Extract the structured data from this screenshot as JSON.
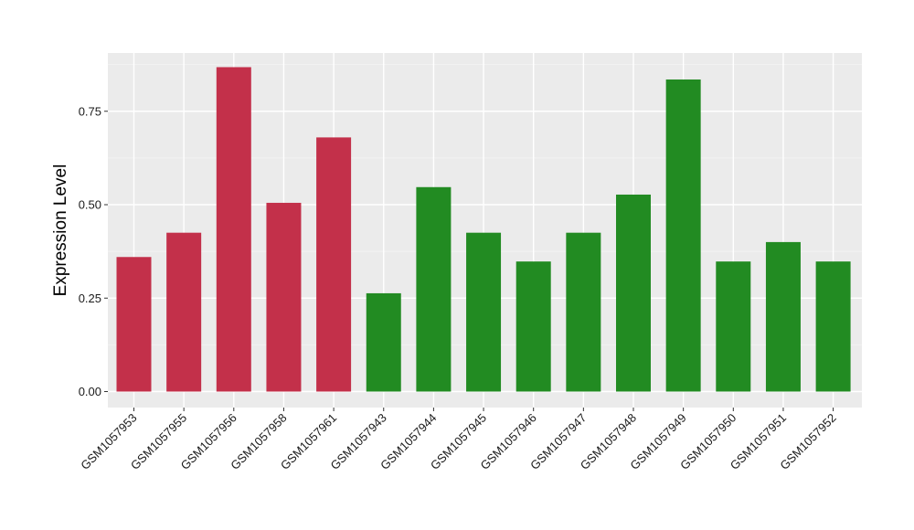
{
  "chart_data": {
    "type": "bar",
    "title": "",
    "xlabel": "",
    "ylabel": "Expression Level",
    "ylim": [
      0,
      0.91
    ],
    "yticks": [
      0.0,
      0.25,
      0.5,
      0.75
    ],
    "ytick_labels": [
      "0.00",
      "0.25",
      "0.50",
      "0.75"
    ],
    "grid": true,
    "legend": "none",
    "categories": [
      "GSM1057953",
      "GSM1057955",
      "GSM1057956",
      "GSM1057958",
      "GSM1057961",
      "GSM1057943",
      "GSM1057944",
      "GSM1057945",
      "GSM1057946",
      "GSM1057947",
      "GSM1057948",
      "GSM1057949",
      "GSM1057950",
      "GSM1057951",
      "GSM1057952"
    ],
    "values": [
      0.36,
      0.425,
      0.868,
      0.505,
      0.68,
      0.263,
      0.547,
      0.425,
      0.348,
      0.425,
      0.527,
      0.835,
      0.348,
      0.4,
      0.348
    ],
    "groups": [
      "red",
      "red",
      "red",
      "red",
      "red",
      "green",
      "green",
      "green",
      "green",
      "green",
      "green",
      "green",
      "green",
      "green",
      "green"
    ],
    "colors": {
      "red": "#c3304a",
      "green": "#228b22",
      "panel": "#ebebeb",
      "grid_major": "#ffffff",
      "grid_minor": "#f5f5f5"
    }
  }
}
